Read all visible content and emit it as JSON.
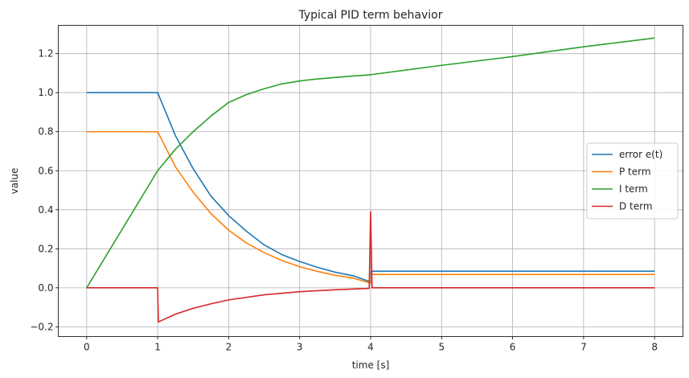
{
  "chart_data": {
    "type": "line",
    "title": "Typical PID term behavior",
    "xlabel": "time [s]",
    "ylabel": "value",
    "xlim": [
      -0.4,
      8.4
    ],
    "ylim": [
      -0.25,
      1.345
    ],
    "xticks": [
      0,
      1,
      2,
      3,
      4,
      5,
      6,
      7,
      8
    ],
    "xtick_labels": [
      "0",
      "1",
      "2",
      "3",
      "4",
      "5",
      "6",
      "7",
      "8"
    ],
    "yticks": [
      -0.2,
      0.0,
      0.2,
      0.4,
      0.6,
      0.8,
      1.0,
      1.2
    ],
    "ytick_labels": [
      "−0.2",
      "0.0",
      "0.2",
      "0.4",
      "0.6",
      "0.8",
      "1.0",
      "1.2"
    ],
    "grid": true,
    "legend_position": "right",
    "series": [
      {
        "name": "error e(t)",
        "color": "#1f77b4",
        "points": [
          [
            0,
            1.0
          ],
          [
            1,
            1.0
          ],
          [
            1.25,
            0.78
          ],
          [
            1.5,
            0.61
          ],
          [
            1.75,
            0.47
          ],
          [
            2,
            0.37
          ],
          [
            2.25,
            0.29
          ],
          [
            2.5,
            0.22
          ],
          [
            2.75,
            0.17
          ],
          [
            3,
            0.135
          ],
          [
            3.25,
            0.105
          ],
          [
            3.5,
            0.08
          ],
          [
            3.75,
            0.062
          ],
          [
            4,
            0.03
          ],
          [
            4.01,
            0.085
          ],
          [
            8,
            0.085
          ]
        ]
      },
      {
        "name": "P term",
        "color": "#ff7f0e",
        "points": [
          [
            0,
            0.8
          ],
          [
            1,
            0.8
          ],
          [
            1.25,
            0.62
          ],
          [
            1.5,
            0.49
          ],
          [
            1.75,
            0.38
          ],
          [
            2,
            0.295
          ],
          [
            2.25,
            0.23
          ],
          [
            2.5,
            0.18
          ],
          [
            2.75,
            0.14
          ],
          [
            3,
            0.108
          ],
          [
            3.25,
            0.084
          ],
          [
            3.5,
            0.064
          ],
          [
            3.75,
            0.05
          ],
          [
            4,
            0.024
          ],
          [
            4.01,
            0.068
          ],
          [
            8,
            0.068
          ]
        ]
      },
      {
        "name": "I term",
        "color": "#2ca02c",
        "points": [
          [
            0,
            0.0
          ],
          [
            1,
            0.6
          ],
          [
            1.25,
            0.71
          ],
          [
            1.5,
            0.8
          ],
          [
            1.75,
            0.88
          ],
          [
            2,
            0.95
          ],
          [
            2.25,
            0.99
          ],
          [
            2.5,
            1.02
          ],
          [
            2.75,
            1.045
          ],
          [
            3,
            1.06
          ],
          [
            3.25,
            1.07
          ],
          [
            3.5,
            1.078
          ],
          [
            3.75,
            1.085
          ],
          [
            4,
            1.092
          ],
          [
            5,
            1.14
          ],
          [
            6,
            1.185
          ],
          [
            7,
            1.235
          ],
          [
            8,
            1.28
          ]
        ]
      },
      {
        "name": "D term",
        "color": "#d62728",
        "points": [
          [
            0,
            0.0
          ],
          [
            1,
            0.0
          ],
          [
            1.01,
            -0.175
          ],
          [
            1.25,
            -0.135
          ],
          [
            1.5,
            -0.105
          ],
          [
            1.75,
            -0.082
          ],
          [
            2,
            -0.062
          ],
          [
            2.5,
            -0.036
          ],
          [
            3,
            -0.02
          ],
          [
            3.5,
            -0.01
          ],
          [
            3.98,
            -0.003
          ],
          [
            4,
            0.39
          ],
          [
            4.02,
            0.0
          ],
          [
            8,
            0.0
          ]
        ]
      }
    ]
  }
}
